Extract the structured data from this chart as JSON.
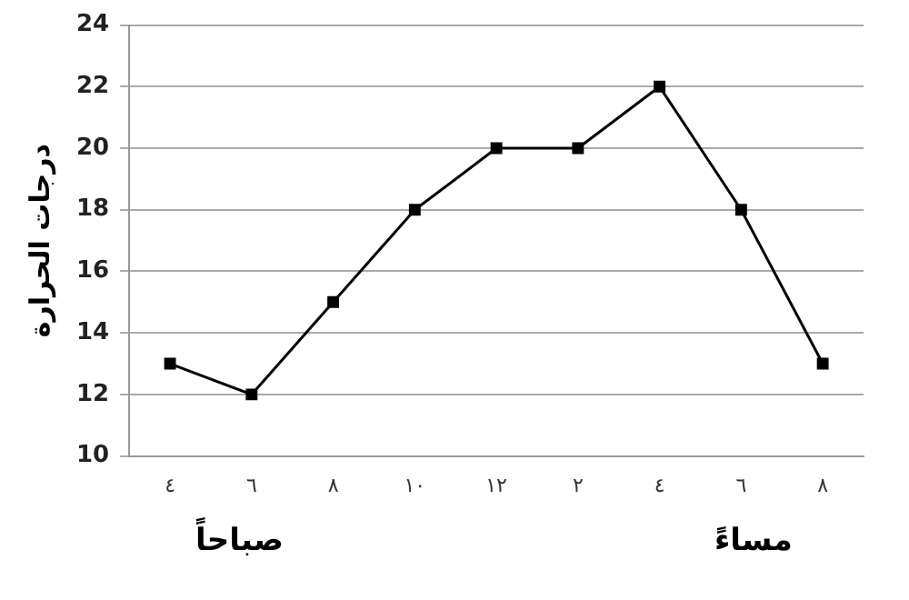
{
  "chart_data": {
    "type": "line",
    "ylabel": "درجات الحرارة",
    "categories": [
      "٤",
      "٦",
      "٨",
      "١٠",
      "١٢",
      "٢",
      "٤",
      "٦",
      "٨"
    ],
    "series": [
      {
        "color": "#000000",
        "values": [
          13,
          12,
          15,
          18,
          20,
          20,
          22,
          18,
          13
        ]
      }
    ],
    "ylim": [
      10,
      24
    ],
    "yticks": [
      10,
      12,
      14,
      16,
      18,
      20,
      22,
      24
    ],
    "grid": "y",
    "legend": false,
    "marker": "square",
    "line_style": "solid",
    "annotations": [
      "صباحاً",
      "مساءً"
    ]
  }
}
